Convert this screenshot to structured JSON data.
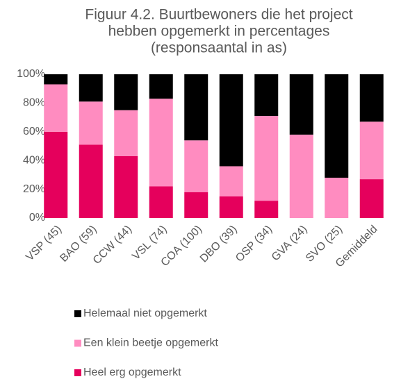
{
  "chart_data": {
    "type": "stacked_bar",
    "title": [
      "Figuur 4.2. Buurtbewoners die het project",
      "hebben opgemerkt in percentages",
      "(responsaantal in as)"
    ],
    "categories": [
      "VSP (45)",
      "BAO (59)",
      "CCW (44)",
      "VSL (74)",
      "COA (100)",
      "DBO (39)",
      "OSP (34)",
      "GVA (24)",
      "SVO (25)",
      "Gemiddeld"
    ],
    "series": [
      {
        "name": "Heel erg opgemerkt",
        "color": "#e5005c",
        "values": [
          60,
          51,
          43,
          22,
          18,
          15,
          12,
          0,
          0,
          27
        ]
      },
      {
        "name": "Een klein beetje opgemerkt",
        "color": "#ff8cc0",
        "values": [
          33,
          30,
          32,
          61,
          36,
          21,
          59,
          58,
          28,
          40
        ]
      },
      {
        "name": "Helemaal niet opgemerkt",
        "color": "#000000",
        "values": [
          7,
          19,
          25,
          17,
          46,
          64,
          29,
          42,
          72,
          33
        ]
      }
    ],
    "ylim": [
      0,
      100
    ],
    "yticks": [
      {
        "value": 0,
        "label": "0%"
      },
      {
        "value": 20,
        "label": "20%"
      },
      {
        "value": 40,
        "label": "40%"
      },
      {
        "value": 60,
        "label": "60%"
      },
      {
        "value": 80,
        "label": "80%"
      },
      {
        "value": 100,
        "label": "100%"
      }
    ],
    "grid": false
  }
}
